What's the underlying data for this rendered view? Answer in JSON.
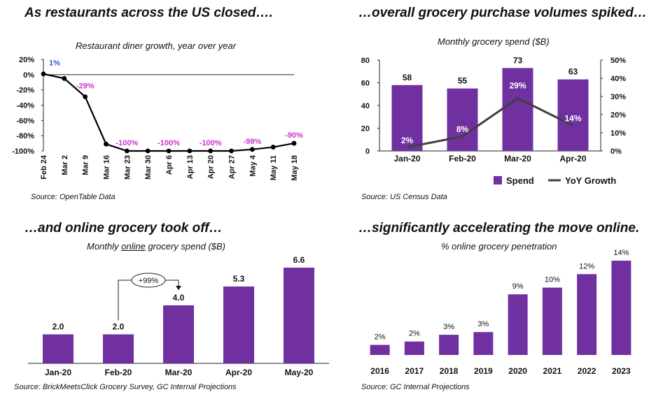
{
  "panels": {
    "tl": {
      "heading": "As restaurants across the US closed….",
      "source": "Source: OpenTable Data"
    },
    "tr": {
      "heading": "…overall grocery purchase volumes spiked…",
      "source": "Source: US Census Data"
    },
    "bl": {
      "heading": "…and online grocery took off…",
      "source": "Source: BrickMeetsClick Grocery Survey, GC Internal Projections"
    },
    "br": {
      "heading": "…significantly accelerating the move online.",
      "source": "Source: GC Internal Projections"
    }
  },
  "colors": {
    "purple": "#7030a0",
    "magenta": "#cc33cc",
    "blue": "#2f5fc8",
    "line": "#404040"
  },
  "chart_data": [
    {
      "type": "line",
      "title": "Restaurant diner growth,  year over year",
      "x": [
        "Feb 24",
        "Mar 2",
        "Mar 9",
        "Mar 16",
        "Mar 23",
        "Mar 30",
        "Apr 6",
        "Apr 13",
        "Apr 20",
        "Apr 27",
        "May 4",
        "May 11",
        "May 18"
      ],
      "y": [
        1,
        -5,
        -29,
        -91,
        -100,
        -100,
        -100,
        -100,
        -100,
        -100,
        -98,
        -95,
        -90
      ],
      "labels": [
        {
          "index": 0,
          "text": "1%",
          "color": "blue"
        },
        {
          "index": 2,
          "text": "-29%"
        },
        {
          "index": 4,
          "text": "-100%"
        },
        {
          "index": 6,
          "text": "-100%"
        },
        {
          "index": 8,
          "text": "-100%"
        },
        {
          "index": 10,
          "text": "-98%"
        },
        {
          "index": 12,
          "text": "-90%"
        }
      ],
      "ylim": [
        -100,
        20
      ],
      "yticks": [
        "20%",
        "0%",
        "-20%",
        "-40%",
        "-60%",
        "-80%",
        "-100%"
      ],
      "ytick_values": [
        20,
        0,
        -20,
        -40,
        -60,
        -80,
        -100
      ]
    },
    {
      "type": "bar",
      "title": "Monthly grocery spend ($B)",
      "categories": [
        "Jan-20",
        "Feb-20",
        "Mar-20",
        "Apr-20"
      ],
      "series": [
        {
          "name": "Spend",
          "values": [
            58,
            55,
            73,
            63
          ],
          "labels": [
            "58",
            "55",
            "73",
            "63"
          ]
        },
        {
          "name": "YoY Growth",
          "type": "line",
          "axis": "right",
          "values": [
            2,
            8,
            29,
            14
          ],
          "labels": [
            "2%",
            "8%",
            "29%",
            "14%"
          ]
        }
      ],
      "ylim": [
        0,
        80
      ],
      "yticks": [
        "0",
        "20",
        "40",
        "60",
        "80"
      ],
      "ytick_values": [
        0,
        20,
        40,
        60,
        80
      ],
      "y2lim": [
        0,
        50
      ],
      "y2ticks": [
        "0%",
        "10%",
        "20%",
        "30%",
        "40%",
        "50%"
      ],
      "y2tick_values": [
        0,
        10,
        20,
        30,
        40,
        50
      ],
      "legend": [
        "Spend",
        "YoY Growth"
      ]
    },
    {
      "type": "bar",
      "title_parts": [
        "Monthly ",
        "online",
        "  grocery spend ($B)"
      ],
      "categories": [
        "Jan-20",
        "Feb-20",
        "Mar-20",
        "Apr-20",
        "May-20"
      ],
      "values": [
        2.0,
        2.0,
        4.0,
        5.3,
        6.6
      ],
      "labels": [
        "2.0",
        "2.0",
        "4.0",
        "5.3",
        "6.6"
      ],
      "annotation": "+99%",
      "ylim": [
        0,
        7
      ]
    },
    {
      "type": "bar",
      "title": "% online grocery penetration",
      "categories": [
        "2016",
        "2017",
        "2018",
        "2019",
        "2020",
        "2021",
        "2022",
        "2023"
      ],
      "values": [
        1.5,
        2,
        3,
        3.4,
        9,
        10,
        12,
        14
      ],
      "labels": [
        "2%",
        "2%",
        "3%",
        "3%",
        "9%",
        "10%",
        "12%",
        "14%"
      ],
      "ylim": [
        0,
        15
      ]
    }
  ]
}
